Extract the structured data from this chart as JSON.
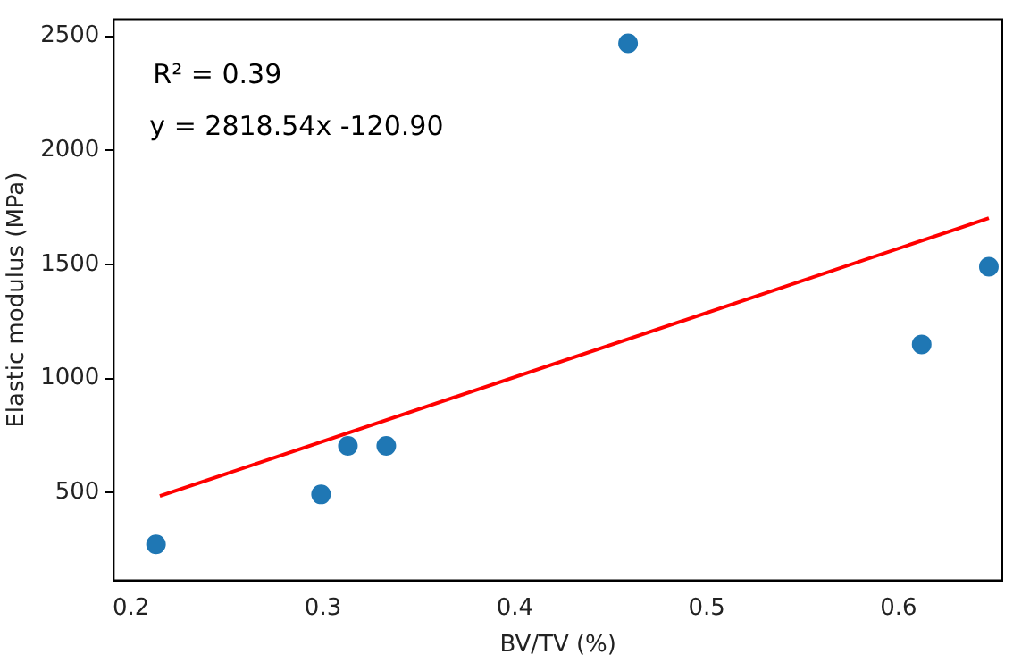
{
  "chart_data": {
    "type": "scatter",
    "xlabel": "BV/TV (%)",
    "ylabel": "Elastic modulus (MPa)",
    "xlim": [
      0.191,
      0.654
    ],
    "ylim": [
      115,
      2575
    ],
    "xticks": [
      0.2,
      0.3,
      0.4,
      0.5,
      0.6
    ],
    "yticks": [
      500,
      1000,
      1500,
      2000,
      2500
    ],
    "grid": false,
    "legend": false,
    "annotations": [
      "R² = 0.39",
      "y = 2818.54x -120.90"
    ],
    "series": [
      {
        "type": "scatter",
        "marker": "circle",
        "color": "#1f77b4",
        "x": [
          0.213,
          0.299,
          0.313,
          0.333,
          0.459,
          0.612,
          0.647
        ],
        "values": [
          273,
          492,
          705,
          705,
          2470,
          1150,
          1490
        ]
      },
      {
        "type": "line",
        "color": "#ff0000",
        "x": [
          0.215,
          0.647
        ],
        "values": [
          485,
          1703
        ]
      }
    ]
  }
}
